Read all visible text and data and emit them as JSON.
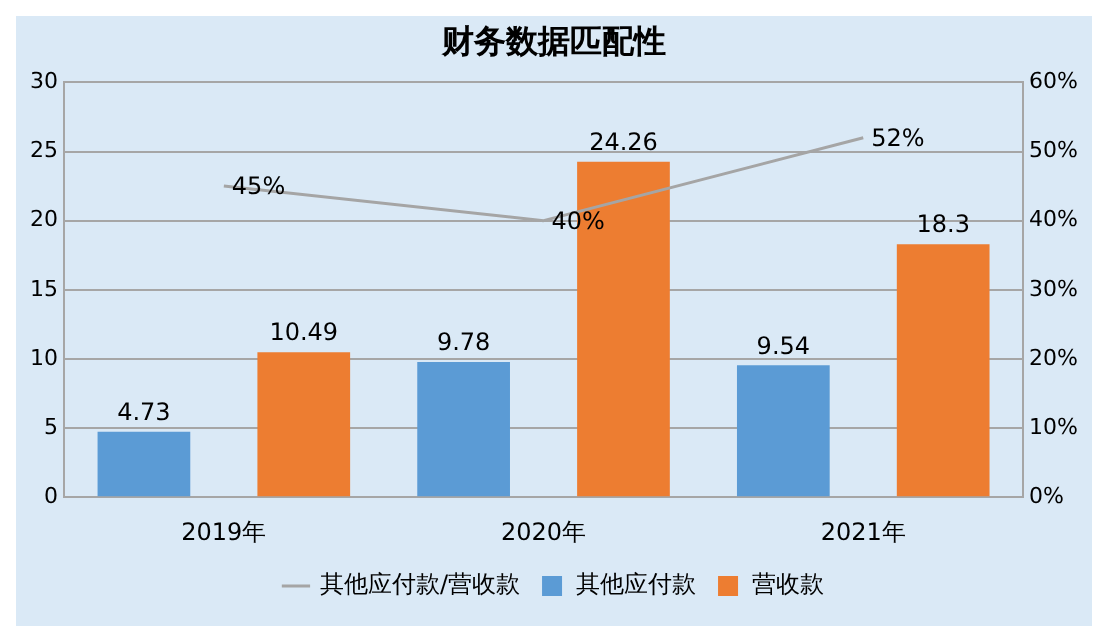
{
  "chart_data": {
    "type": "bar",
    "title": "财务数据匹配性",
    "categories": [
      "2019年",
      "2020年",
      "2021年"
    ],
    "series": [
      {
        "name": "其他应付款",
        "color": "#5b9bd5",
        "values": [
          4.73,
          9.78,
          9.54
        ],
        "value_labels": [
          "4.73",
          "9.78",
          "9.54"
        ]
      },
      {
        "name": "营收款",
        "color": "#ed7d31",
        "values": [
          10.49,
          24.26,
          18.3
        ],
        "value_labels": [
          "10.49",
          "24.26",
          "18.3"
        ]
      },
      {
        "name": "其他应付款/营收款",
        "type": "line",
        "axis": "y2",
        "color": "#a5a5a5",
        "values": [
          45,
          40,
          52
        ],
        "value_labels": [
          "45%",
          "40%",
          "52%"
        ]
      }
    ],
    "ylim": [
      0,
      30
    ],
    "yticks": [
      0,
      5,
      10,
      15,
      20,
      25,
      30
    ],
    "y2lim": [
      0,
      60
    ],
    "y2ticks": [
      {
        "value": 0,
        "label": "0%"
      },
      {
        "value": 10,
        "label": "10%"
      },
      {
        "value": 20,
        "label": "20%"
      },
      {
        "value": 30,
        "label": "30%"
      },
      {
        "value": 40,
        "label": "40%"
      },
      {
        "value": 50,
        "label": "50%"
      },
      {
        "value": 60,
        "label": "60%"
      }
    ],
    "grid": "y",
    "legend": "bottom",
    "marker": "none"
  }
}
